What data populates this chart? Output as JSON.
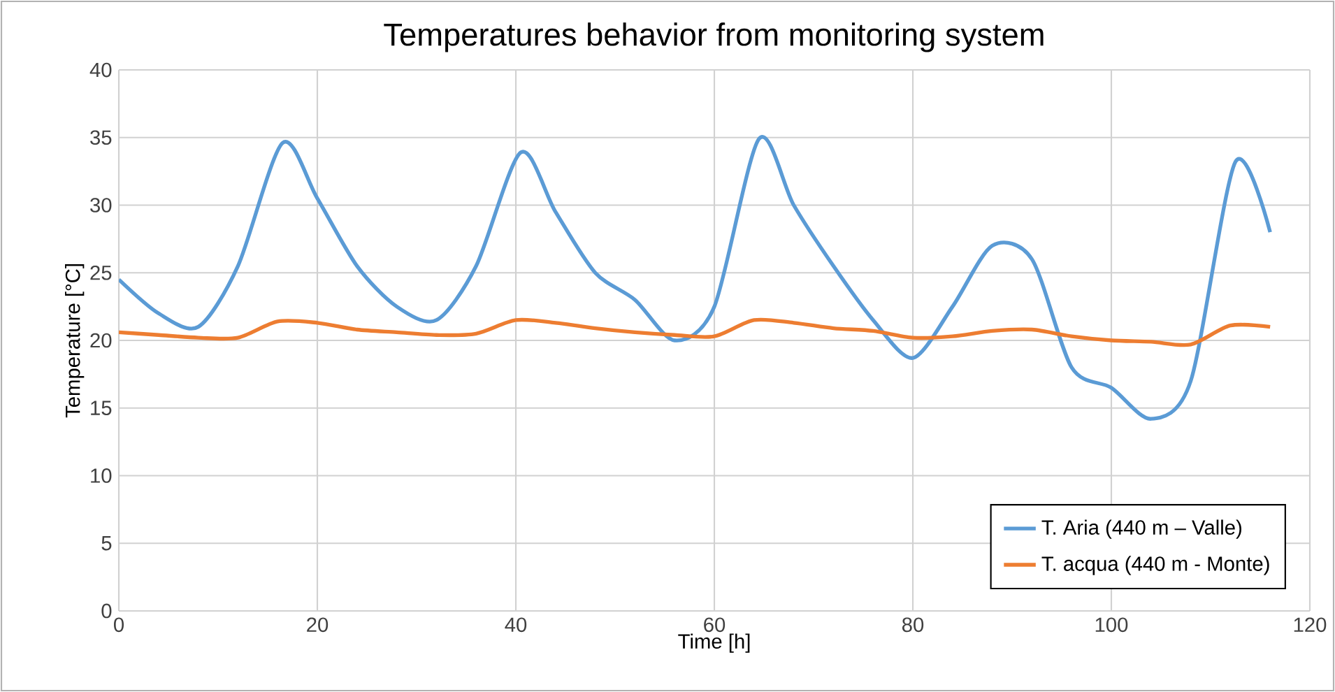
{
  "chart_data": {
    "type": "line",
    "title": "Temperatures behavior from monitoring system",
    "xlabel": "Time [h]",
    "ylabel": "Temperature [°C]",
    "xlim": [
      0,
      120
    ],
    "xticks": [
      0,
      20,
      40,
      60,
      80,
      100,
      120
    ],
    "ylim": [
      0,
      40
    ],
    "yticks": [
      0,
      5,
      10,
      15,
      20,
      25,
      30,
      35,
      40
    ],
    "grid": true,
    "legend": "bottom right",
    "line_style": "solid",
    "marker": "none",
    "series": [
      {
        "name": "T. Aria (440 m – Valle)",
        "color": "#5b9bd5",
        "x": [
          0,
          4,
          8,
          12,
          16.5,
          20,
          24,
          28,
          32,
          36,
          40.5,
          44,
          48,
          52,
          56,
          60,
          64.5,
          68,
          72,
          76,
          80,
          84,
          88,
          92,
          96,
          100,
          104,
          108,
          112.5,
          116
        ],
        "values": [
          24.5,
          22,
          21,
          25.5,
          34.6,
          30.5,
          25.5,
          22.5,
          21.5,
          25.5,
          33.9,
          29.5,
          25,
          23,
          20,
          22.5,
          34.9,
          30,
          25.5,
          21.5,
          18.7,
          22.5,
          27,
          26,
          18,
          16.5,
          14.2,
          17,
          33.2,
          28
        ]
      },
      {
        "name": "T. acqua (440 m - Monte)",
        "color": "#ed7d31",
        "x": [
          0,
          4,
          8,
          12,
          16,
          20,
          24,
          28,
          32,
          36,
          40,
          44,
          48,
          52,
          56,
          60,
          64,
          68,
          72,
          76,
          80,
          84,
          88,
          92,
          96,
          100,
          104,
          108,
          112,
          116
        ],
        "values": [
          20.6,
          20.4,
          20.2,
          20.2,
          21.4,
          21.3,
          20.8,
          20.6,
          20.4,
          20.5,
          21.5,
          21.3,
          20.9,
          20.6,
          20.4,
          20.3,
          21.5,
          21.3,
          20.9,
          20.7,
          20.2,
          20.3,
          20.7,
          20.8,
          20.3,
          20.0,
          19.9,
          19.7,
          21.1,
          21.0
        ]
      }
    ]
  }
}
